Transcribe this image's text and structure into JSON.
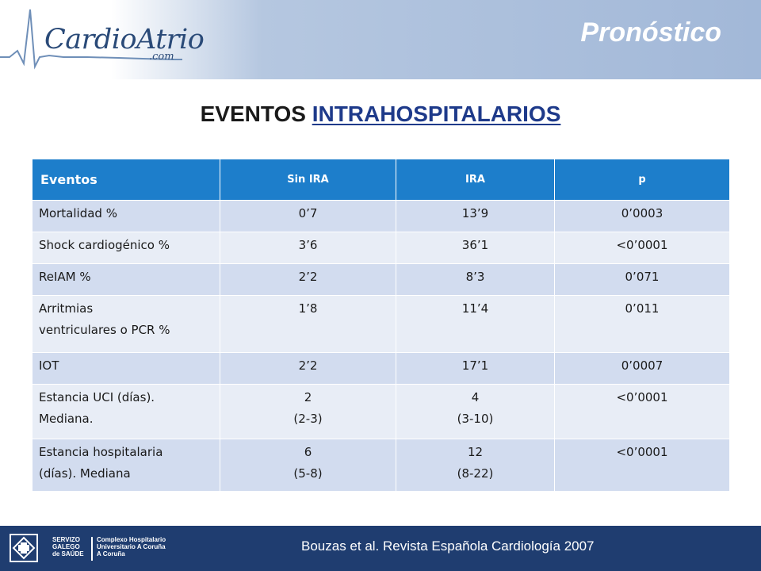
{
  "header": {
    "logo_text": "CardioAtrio",
    "logo_sub": ".com",
    "slide_title": "Pronóstico"
  },
  "heading": {
    "prefix": "EVENTOS ",
    "underlined": "INTRAHOSPITALARIOS"
  },
  "table": {
    "headers": [
      "Eventos",
      "Sin IRA",
      "IRA",
      "p"
    ],
    "rows": [
      {
        "label": [
          "Mortalidad %"
        ],
        "sin_ira": [
          "0’7"
        ],
        "ira": [
          "13’9"
        ],
        "p": "0’0003"
      },
      {
        "label": [
          "Shock cardiogénico %"
        ],
        "sin_ira": [
          "3’6"
        ],
        "ira": [
          "36’1"
        ],
        "p": "<0’0001"
      },
      {
        "label": [
          "ReIAM %"
        ],
        "sin_ira": [
          "2’2"
        ],
        "ira": [
          "8’3"
        ],
        "p": "0’071"
      },
      {
        "label": [
          "Arritmias",
          "ventriculares o PCR %"
        ],
        "sin_ira": [
          "1’8"
        ],
        "ira": [
          "11’4"
        ],
        "p": "0’011"
      },
      {
        "label": [
          "IOT"
        ],
        "sin_ira": [
          "2’2"
        ],
        "ira": [
          "17’1"
        ],
        "p": "0’0007"
      },
      {
        "label": [
          "Estancia UCI (días).",
          "Mediana."
        ],
        "sin_ira": [
          "2",
          "(2-3)"
        ],
        "ira": [
          "4",
          "(3-10)"
        ],
        "p": "<0’0001"
      },
      {
        "label": [
          "Estancia hospitalaria",
          "(días). Mediana"
        ],
        "sin_ira": [
          "6",
          "(5-8)"
        ],
        "ira": [
          "12",
          "(8-22)"
        ],
        "p": "<0’0001"
      }
    ]
  },
  "footer": {
    "sergas_lines": [
      "SERVIZO",
      "GALEGO",
      "de SAÚDE"
    ],
    "chuac_lines": [
      "Complexo Hospitalario",
      "Universitario A Coruña",
      "A Coruña"
    ],
    "citation": "Bouzas et al. Revista Española Cardiología 2007"
  },
  "colors": {
    "header_band": "#a2b8d8",
    "table_header": "#1d7ecb",
    "row_dark": "#d2dcef",
    "row_light": "#e8edf6",
    "footer": "#1f3d70",
    "heading_link": "#1e3a8a"
  }
}
